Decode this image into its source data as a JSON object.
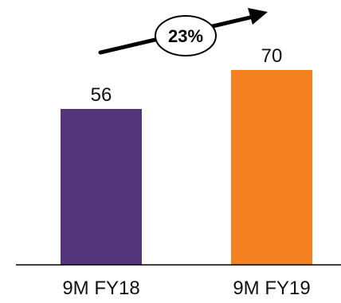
{
  "chart_data": {
    "type": "bar",
    "categories": [
      "9M FY18",
      "9M FY19"
    ],
    "values": [
      56,
      70
    ],
    "data_labels": [
      "56",
      "70"
    ],
    "colors": [
      "#54357a",
      "#f58220"
    ],
    "ylim": [
      0,
      70
    ],
    "grid": false,
    "annotation": {
      "text": "23%",
      "shape": "ellipse",
      "arrow": "up-right"
    },
    "axis_color": "#000000"
  }
}
